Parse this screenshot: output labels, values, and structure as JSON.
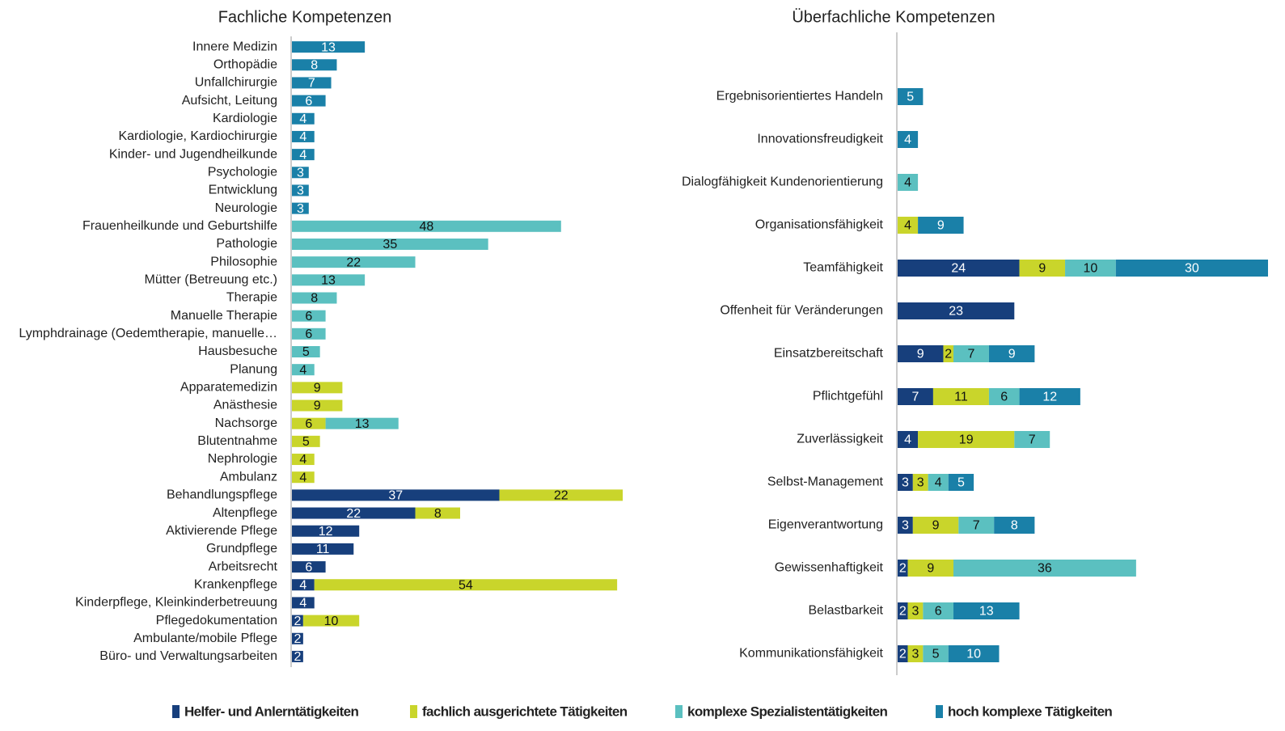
{
  "chart_data": [
    {
      "type": "stacked_bar_horizontal",
      "title": "Fachliche Kompetenzen",
      "xlim": [
        0,
        60
      ],
      "categories": [
        "Innere Medizin",
        "Orthopädie",
        "Unfallchirurgie",
        "Aufsicht, Leitung",
        "Kardiologie",
        "Kardiologie, Kardiochirurgie",
        "Kinder- und Jugendheilkunde",
        "Psychologie",
        "Entwicklung",
        "Neurologie",
        "Frauenheilkunde und Geburtshilfe",
        "Pathologie",
        "Philosophie",
        "Mütter (Betreuung etc.)",
        "Therapie",
        "Manuelle Therapie",
        "Lymphdrainage (Oedemtherapie, manuelle…",
        "Hausbesuche",
        "Planung",
        "Apparatemedizin",
        "Anästhesie",
        "Nachsorge",
        "Blutentnahme",
        "Nephrologie",
        "Ambulanz",
        "Behandlungspflege",
        "Altenpflege",
        "Aktivierende Pflege",
        "Grundpflege",
        "Arbeitsrecht",
        "Krankenpflege",
        "Kinderpflege, Kleinkinderbetreuung",
        "Pflegedokumentation",
        "Ambulante/mobile Pflege",
        "Büro- und Verwaltungsarbeiten"
      ],
      "series": [
        {
          "name": "Helfer- und Anlerntätigkeiten",
          "color": "#173f7c",
          "values": [
            null,
            null,
            null,
            null,
            null,
            null,
            null,
            null,
            null,
            null,
            null,
            null,
            null,
            null,
            null,
            null,
            null,
            null,
            null,
            null,
            null,
            null,
            null,
            null,
            null,
            37,
            22,
            12,
            11,
            6,
            4,
            4,
            2,
            2,
            2
          ]
        },
        {
          "name": "fachlich ausgerichtete Tätigkeiten",
          "color": "#c9d52b",
          "values": [
            null,
            null,
            null,
            null,
            null,
            null,
            null,
            null,
            null,
            null,
            null,
            null,
            null,
            null,
            null,
            null,
            null,
            null,
            null,
            9,
            9,
            6,
            5,
            4,
            4,
            22,
            8,
            null,
            null,
            null,
            54,
            null,
            10,
            null,
            null
          ]
        },
        {
          "name": "komplexe Spezialistentätigkeiten",
          "color": "#5bc0c0",
          "values": [
            null,
            null,
            null,
            null,
            null,
            null,
            null,
            null,
            null,
            null,
            48,
            35,
            22,
            13,
            8,
            6,
            6,
            5,
            4,
            null,
            null,
            13,
            null,
            null,
            null,
            null,
            null,
            null,
            null,
            null,
            null,
            null,
            null,
            null,
            null
          ]
        },
        {
          "name": "hoch komplexe Tätigkeiten",
          "color": "#1a80a8",
          "values": [
            13,
            8,
            7,
            6,
            4,
            4,
            4,
            3,
            3,
            3,
            null,
            null,
            null,
            null,
            null,
            null,
            null,
            null,
            null,
            null,
            null,
            null,
            null,
            null,
            null,
            null,
            null,
            null,
            null,
            null,
            null,
            null,
            null,
            null,
            null
          ]
        }
      ]
    },
    {
      "type": "stacked_bar_horizontal",
      "title": "Überfachliche Kompetenzen",
      "xlim": [
        0,
        73
      ],
      "categories": [
        "Ergebnisorientiertes Handeln",
        "Innovationsfreudigkeit",
        "Dialogfähigkeit Kundenorientierung",
        "Organisationsfähigkeit",
        "Teamfähigkeit",
        "Offenheit für Veränderungen",
        "Einsatzbereitschaft",
        "Pflichtgefühl",
        "Zuverlässigkeit",
        "Selbst-Management",
        "Eigenverantwortung",
        "Gewissenhaftigkeit",
        "Belastbarkeit",
        "Kommunikationsfähigkeit"
      ],
      "series": [
        {
          "name": "Helfer- und Anlerntätigkeiten",
          "color": "#173f7c",
          "values": [
            null,
            null,
            null,
            null,
            24,
            23,
            9,
            7,
            4,
            3,
            3,
            2,
            2,
            2
          ]
        },
        {
          "name": "fachlich ausgerichtete Tätigkeiten",
          "color": "#c9d52b",
          "values": [
            null,
            null,
            null,
            4,
            9,
            null,
            2,
            11,
            19,
            3,
            9,
            9,
            3,
            3
          ]
        },
        {
          "name": "komplexe Spezialistentätigkeiten",
          "color": "#5bc0c0",
          "values": [
            null,
            null,
            4,
            null,
            10,
            null,
            7,
            6,
            7,
            4,
            7,
            36,
            6,
            5
          ]
        },
        {
          "name": "hoch komplexe Tätigkeiten",
          "color": "#1a80a8",
          "values": [
            5,
            4,
            null,
            9,
            30,
            null,
            9,
            12,
            null,
            5,
            8,
            null,
            13,
            10
          ]
        }
      ]
    }
  ]
}
